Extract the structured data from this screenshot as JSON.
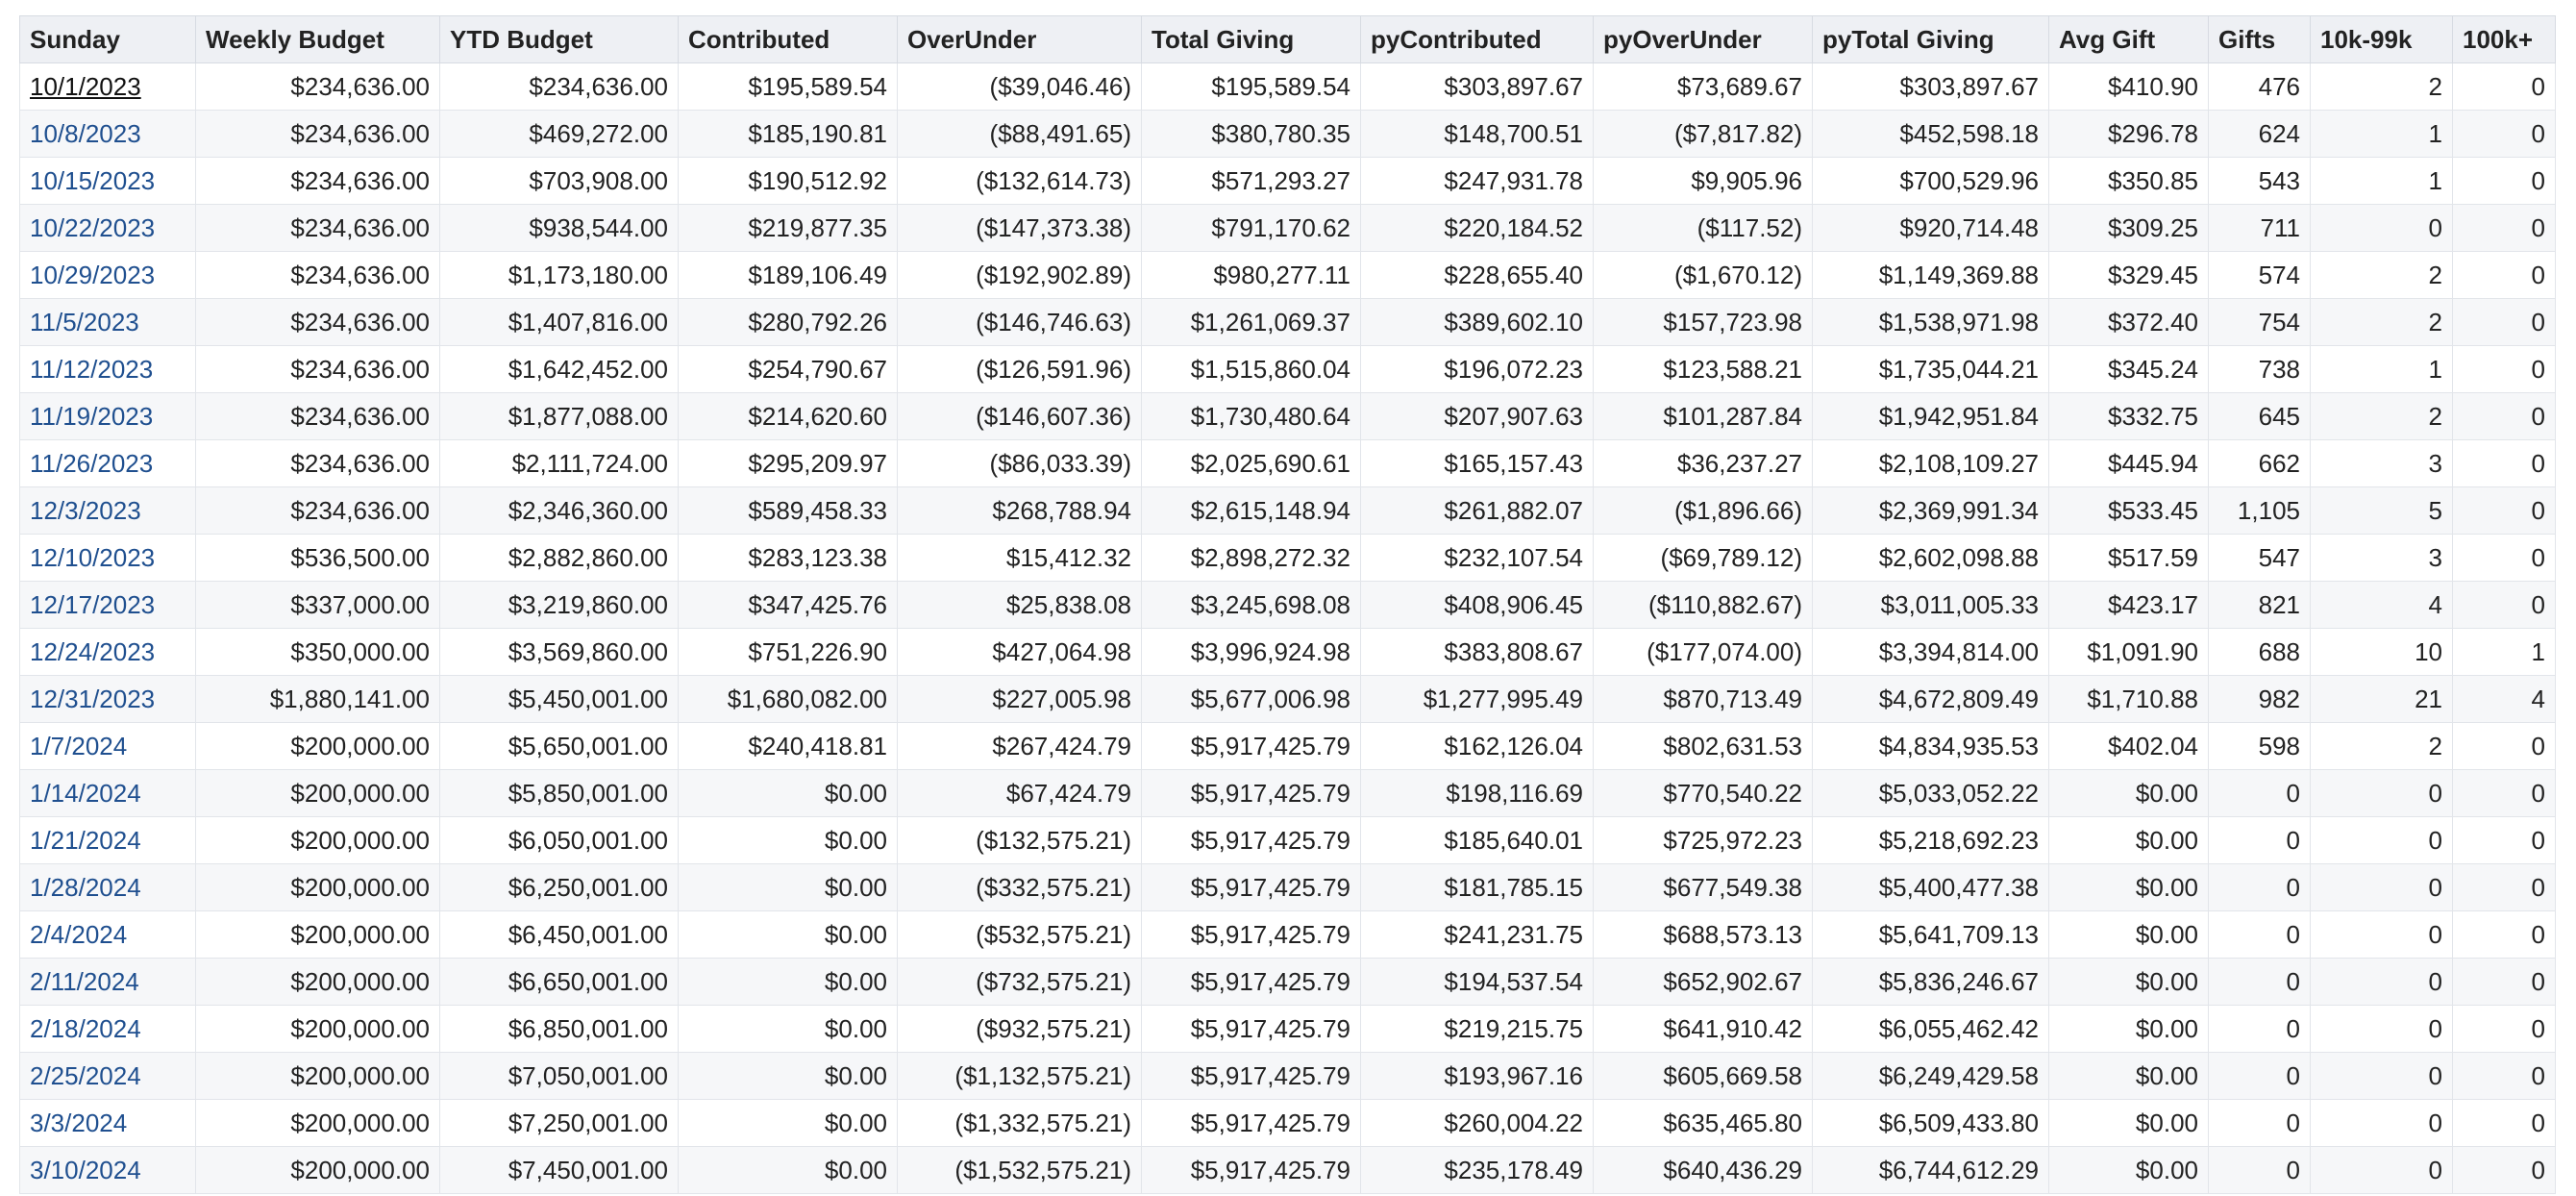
{
  "table": {
    "columns": [
      "Sunday",
      "Weekly Budget",
      "YTD Budget",
      "Contributed",
      "OverUnder",
      "Total Giving",
      "pyContributed",
      "pyOverUnder",
      "pyTotal Giving",
      "Avg Gift",
      "Gifts",
      "10k-99k",
      "100k+"
    ],
    "rows": [
      [
        "10/1/2023",
        "$234,636.00",
        "$234,636.00",
        "$195,589.54",
        "($39,046.46)",
        "$195,589.54",
        "$303,897.67",
        "$73,689.67",
        "$303,897.67",
        "$410.90",
        "476",
        "2",
        "0"
      ],
      [
        "10/8/2023",
        "$234,636.00",
        "$469,272.00",
        "$185,190.81",
        "($88,491.65)",
        "$380,780.35",
        "$148,700.51",
        "($7,817.82)",
        "$452,598.18",
        "$296.78",
        "624",
        "1",
        "0"
      ],
      [
        "10/15/2023",
        "$234,636.00",
        "$703,908.00",
        "$190,512.92",
        "($132,614.73)",
        "$571,293.27",
        "$247,931.78",
        "$9,905.96",
        "$700,529.96",
        "$350.85",
        "543",
        "1",
        "0"
      ],
      [
        "10/22/2023",
        "$234,636.00",
        "$938,544.00",
        "$219,877.35",
        "($147,373.38)",
        "$791,170.62",
        "$220,184.52",
        "($117.52)",
        "$920,714.48",
        "$309.25",
        "711",
        "0",
        "0"
      ],
      [
        "10/29/2023",
        "$234,636.00",
        "$1,173,180.00",
        "$189,106.49",
        "($192,902.89)",
        "$980,277.11",
        "$228,655.40",
        "($1,670.12)",
        "$1,149,369.88",
        "$329.45",
        "574",
        "2",
        "0"
      ],
      [
        "11/5/2023",
        "$234,636.00",
        "$1,407,816.00",
        "$280,792.26",
        "($146,746.63)",
        "$1,261,069.37",
        "$389,602.10",
        "$157,723.98",
        "$1,538,971.98",
        "$372.40",
        "754",
        "2",
        "0"
      ],
      [
        "11/12/2023",
        "$234,636.00",
        "$1,642,452.00",
        "$254,790.67",
        "($126,591.96)",
        "$1,515,860.04",
        "$196,072.23",
        "$123,588.21",
        "$1,735,044.21",
        "$345.24",
        "738",
        "1",
        "0"
      ],
      [
        "11/19/2023",
        "$234,636.00",
        "$1,877,088.00",
        "$214,620.60",
        "($146,607.36)",
        "$1,730,480.64",
        "$207,907.63",
        "$101,287.84",
        "$1,942,951.84",
        "$332.75",
        "645",
        "2",
        "0"
      ],
      [
        "11/26/2023",
        "$234,636.00",
        "$2,111,724.00",
        "$295,209.97",
        "($86,033.39)",
        "$2,025,690.61",
        "$165,157.43",
        "$36,237.27",
        "$2,108,109.27",
        "$445.94",
        "662",
        "3",
        "0"
      ],
      [
        "12/3/2023",
        "$234,636.00",
        "$2,346,360.00",
        "$589,458.33",
        "$268,788.94",
        "$2,615,148.94",
        "$261,882.07",
        "($1,896.66)",
        "$2,369,991.34",
        "$533.45",
        "1,105",
        "5",
        "0"
      ],
      [
        "12/10/2023",
        "$536,500.00",
        "$2,882,860.00",
        "$283,123.38",
        "$15,412.32",
        "$2,898,272.32",
        "$232,107.54",
        "($69,789.12)",
        "$2,602,098.88",
        "$517.59",
        "547",
        "3",
        "0"
      ],
      [
        "12/17/2023",
        "$337,000.00",
        "$3,219,860.00",
        "$347,425.76",
        "$25,838.08",
        "$3,245,698.08",
        "$408,906.45",
        "($110,882.67)",
        "$3,011,005.33",
        "$423.17",
        "821",
        "4",
        "0"
      ],
      [
        "12/24/2023",
        "$350,000.00",
        "$3,569,860.00",
        "$751,226.90",
        "$427,064.98",
        "$3,996,924.98",
        "$383,808.67",
        "($177,074.00)",
        "$3,394,814.00",
        "$1,091.90",
        "688",
        "10",
        "1"
      ],
      [
        "12/31/2023",
        "$1,880,141.00",
        "$5,450,001.00",
        "$1,680,082.00",
        "$227,005.98",
        "$5,677,006.98",
        "$1,277,995.49",
        "$870,713.49",
        "$4,672,809.49",
        "$1,710.88",
        "982",
        "21",
        "4"
      ],
      [
        "1/7/2024",
        "$200,000.00",
        "$5,650,001.00",
        "$240,418.81",
        "$267,424.79",
        "$5,917,425.79",
        "$162,126.04",
        "$802,631.53",
        "$4,834,935.53",
        "$402.04",
        "598",
        "2",
        "0"
      ],
      [
        "1/14/2024",
        "$200,000.00",
        "$5,850,001.00",
        "$0.00",
        "$67,424.79",
        "$5,917,425.79",
        "$198,116.69",
        "$770,540.22",
        "$5,033,052.22",
        "$0.00",
        "0",
        "0",
        "0"
      ],
      [
        "1/21/2024",
        "$200,000.00",
        "$6,050,001.00",
        "$0.00",
        "($132,575.21)",
        "$5,917,425.79",
        "$185,640.01",
        "$725,972.23",
        "$5,218,692.23",
        "$0.00",
        "0",
        "0",
        "0"
      ],
      [
        "1/28/2024",
        "$200,000.00",
        "$6,250,001.00",
        "$0.00",
        "($332,575.21)",
        "$5,917,425.79",
        "$181,785.15",
        "$677,549.38",
        "$5,400,477.38",
        "$0.00",
        "0",
        "0",
        "0"
      ],
      [
        "2/4/2024",
        "$200,000.00",
        "$6,450,001.00",
        "$0.00",
        "($532,575.21)",
        "$5,917,425.79",
        "$241,231.75",
        "$688,573.13",
        "$5,641,709.13",
        "$0.00",
        "0",
        "0",
        "0"
      ],
      [
        "2/11/2024",
        "$200,000.00",
        "$6,650,001.00",
        "$0.00",
        "($732,575.21)",
        "$5,917,425.79",
        "$194,537.54",
        "$652,902.67",
        "$5,836,246.67",
        "$0.00",
        "0",
        "0",
        "0"
      ],
      [
        "2/18/2024",
        "$200,000.00",
        "$6,850,001.00",
        "$0.00",
        "($932,575.21)",
        "$5,917,425.79",
        "$219,215.75",
        "$641,910.42",
        "$6,055,462.42",
        "$0.00",
        "0",
        "0",
        "0"
      ],
      [
        "2/25/2024",
        "$200,000.00",
        "$7,050,001.00",
        "$0.00",
        "($1,132,575.21)",
        "$5,917,425.79",
        "$193,967.16",
        "$605,669.58",
        "$6,249,429.58",
        "$0.00",
        "0",
        "0",
        "0"
      ],
      [
        "3/3/2024",
        "$200,000.00",
        "$7,250,001.00",
        "$0.00",
        "($1,332,575.21)",
        "$5,917,425.79",
        "$260,004.22",
        "$635,465.80",
        "$6,509,433.80",
        "$0.00",
        "0",
        "0",
        "0"
      ],
      [
        "3/10/2024",
        "$200,000.00",
        "$7,450,001.00",
        "$0.00",
        "($1,532,575.21)",
        "$5,917,425.79",
        "$235,178.49",
        "$640,436.29",
        "$6,744,612.29",
        "$0.00",
        "0",
        "0",
        "0"
      ]
    ]
  },
  "colors": {
    "header_bg": "#eef0f4",
    "link": "#1f4f8f",
    "active_link": "#111111",
    "row_alt_bg": "#f6f7f9",
    "grid_line": "#e2e5ea"
  }
}
